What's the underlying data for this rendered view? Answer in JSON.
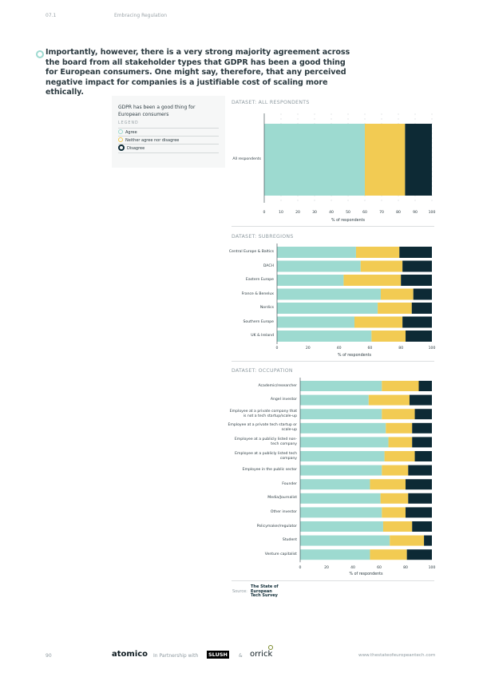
{
  "header": {
    "section_number": "07.1",
    "section_title": "Embracing Regulation"
  },
  "intro_text": "Importantly, however, there is a very strong majority agreement across the board from all stakeholder types that GDPR has been a good thing for European consumers. One might say, therefore, that any perceived negative impact for companies is a justifiable cost of scaling more ethically.",
  "legend": {
    "question": "GDPR has been a good thing for European consumers",
    "heading": "LEGEND",
    "items": [
      {
        "label": "Agree",
        "color": "#9ddad0"
      },
      {
        "label": "Neither agree nor disagree",
        "color": "#f2cb53"
      },
      {
        "label": "Disagree",
        "color": "#0d2a35"
      }
    ]
  },
  "chart_data": [
    {
      "type": "bar",
      "stacked": true,
      "orientation": "horizontal",
      "title": "DATASET: ALL RESPONDENTS",
      "xlabel": "% of respondents",
      "xlim": [
        0,
        100
      ],
      "ticks": [
        0,
        10,
        20,
        30,
        40,
        50,
        60,
        70,
        80,
        90,
        100
      ],
      "grid": true,
      "categories": [
        "All respondents"
      ],
      "series": [
        {
          "name": "Agree",
          "values": [
            60
          ]
        },
        {
          "name": "Neither agree nor disagree",
          "values": [
            24
          ]
        },
        {
          "name": "Disagree",
          "values": [
            16
          ]
        }
      ]
    },
    {
      "type": "bar",
      "stacked": true,
      "orientation": "horizontal",
      "title": "DATASET: SUBREGIONS",
      "xlabel": "% of respondents",
      "xlim": [
        0,
        100
      ],
      "ticks": [
        0,
        20,
        40,
        60,
        80,
        100
      ],
      "grid": false,
      "categories": [
        "Central Europe & Baltics",
        "DACH",
        "Eastern Europe",
        "France & Benelux",
        "Nordics",
        "Southern Europe",
        "UK & Ireland"
      ],
      "series": [
        {
          "name": "Agree",
          "values": [
            51,
            54,
            43,
            67,
            65,
            50,
            61
          ]
        },
        {
          "name": "Neither agree nor disagree",
          "values": [
            28,
            27,
            37,
            21,
            22,
            31,
            22
          ]
        },
        {
          "name": "Disagree",
          "values": [
            21,
            19,
            20,
            12,
            13,
            19,
            17
          ]
        }
      ]
    },
    {
      "type": "bar",
      "stacked": true,
      "orientation": "horizontal",
      "title": "DATASET: OCCUPATION",
      "xlabel": "% of respondents",
      "xlim": [
        0,
        100
      ],
      "ticks": [
        0,
        20,
        40,
        60,
        80,
        100
      ],
      "grid": false,
      "categories": [
        "Academic/researcher",
        "Angel investor",
        "Employee at a private company that is not a tech startup/scale-up",
        "Employee at a private tech startup or scale-up",
        "Employee at a publicly listed non-tech company",
        "Employee at a publicly listed tech company",
        "Employee in the public sector",
        "Founder",
        "Media/Journalist",
        "Other investor",
        "Policymaker/regulator",
        "Student",
        "Venture capitalist"
      ],
      "series": [
        {
          "name": "Agree",
          "values": [
            62,
            52,
            62,
            65,
            67,
            64,
            62,
            53,
            61,
            62,
            63,
            68,
            53
          ]
        },
        {
          "name": "Neither agree nor disagree",
          "values": [
            28,
            31,
            25,
            20,
            18,
            23,
            20,
            27,
            21,
            18,
            22,
            26,
            28
          ]
        },
        {
          "name": "Disagree",
          "values": [
            10,
            17,
            13,
            15,
            15,
            13,
            18,
            20,
            18,
            20,
            15,
            6,
            19
          ]
        }
      ]
    }
  ],
  "source": {
    "label": "Source:",
    "logo_text": "The State of European Tech Survey"
  },
  "footer": {
    "page_number": "90",
    "brand": "atomico",
    "partner_text": "In Partnership with",
    "partner1": "SLUSH",
    "ampersand": "&",
    "partner2": "orrick",
    "url": "www.thestateofeuropeantech.com"
  }
}
